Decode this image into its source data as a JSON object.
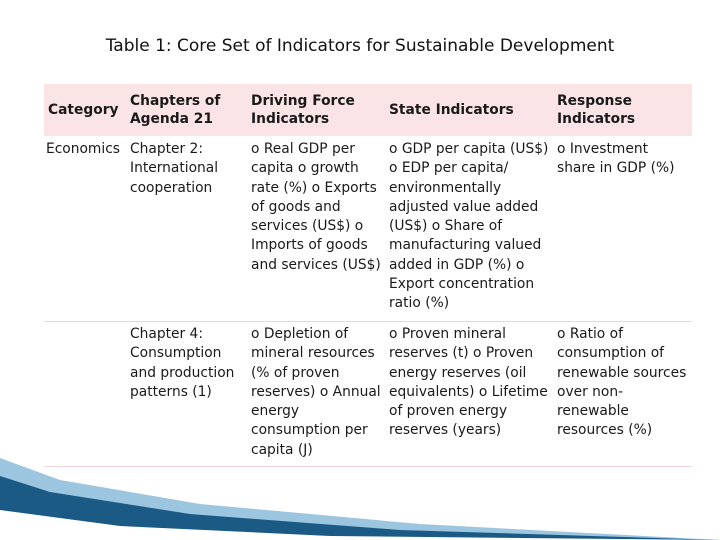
{
  "title": "Table 1: Core Set of Indicators for Sustainable Development",
  "table": {
    "headers": [
      "Category",
      "Chapters of Agenda 21",
      "Driving Force Indicators",
      "State Indicators",
      "Response Indicators"
    ],
    "rows": [
      {
        "category": "Economics",
        "chapter": "Chapter 2: International cooperation",
        "driving": "o Real GDP per capita o growth rate (%) o Exports of goods and services (US$) o Imports of goods and services (US$)",
        "state": "o GDP per capita (US$) o EDP per capita/ environmentally adjusted value added (US$) o Share of manufacturing valued added in GDP (%) o Export concentration ratio (%)",
        "response": "o Investment share in GDP (%)"
      },
      {
        "category": "",
        "chapter": "Chapter 4: Consumption and production patterns (1)",
        "driving": "o Depletion of mineral resources (% of proven reserves) o Annual energy consumption per capita (J)",
        "state": "o Proven mineral reserves (t) o Proven energy reserves (oil equivalents) o Lifetime of proven energy reserves (years)",
        "response": "o Ratio of consumption of renewable sources over non-renewable resources (%)"
      }
    ]
  },
  "colors": {
    "header_bg": "#fbe4e6",
    "swoosh_dark": "#1c5a86",
    "swoosh_light": "#9cc6df"
  }
}
